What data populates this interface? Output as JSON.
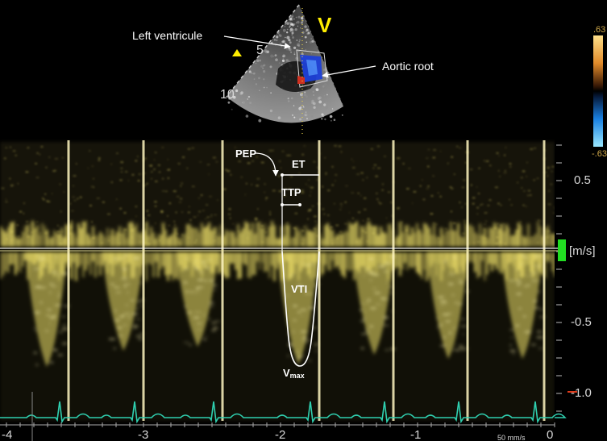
{
  "echo": {
    "view_marker": "V",
    "depth_labels": [
      "5",
      "10"
    ],
    "annotations": {
      "left_ventricle": "Left ventricule",
      "aortic_root": "Aortic root"
    },
    "color_scale": {
      "top": ".63",
      "bottom": "-.63"
    }
  },
  "doppler": {
    "labels": {
      "pep": "PEP",
      "et": "ET",
      "ttp": "TTP",
      "vti": "VTI",
      "vmax_base": "V",
      "vmax_sub": "max"
    },
    "velocity_axis": {
      "unit": "[m/s]",
      "ticks": [
        "0.5",
        "-0.5",
        "-1.0"
      ]
    },
    "time_axis": {
      "ticks": [
        "-4",
        "-3",
        "-2",
        "-1",
        "0"
      ],
      "sweep_speed": "50 mm/s"
    }
  },
  "colors": {
    "doppler_signal": "#f2e36a",
    "ecg_trace": "#2fd0b0",
    "marker_yellow": "#ffee00",
    "baseline_green": "#22dd22",
    "annotation": "#ffffff"
  }
}
